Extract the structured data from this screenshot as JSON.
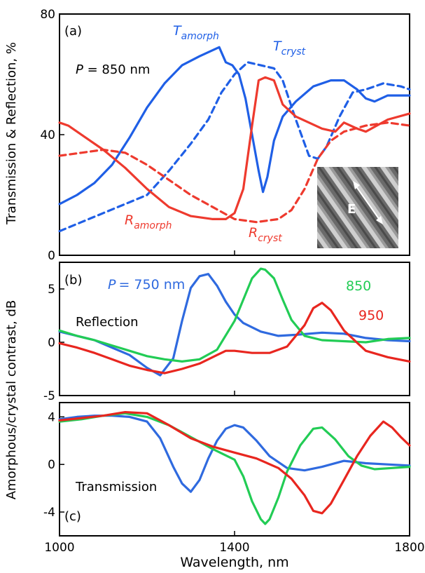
{
  "figure": {
    "xlabel": "Wavelength, nm",
    "shared_ylabel": "Amorphous/crystal contrast, dB",
    "x_ticks": [
      "1000",
      "1400",
      "1800"
    ]
  },
  "colors": {
    "blue": "#1f5fe6",
    "red": "#ee3a2e",
    "green": "#22cc55",
    "blue_c": "#2f6adf",
    "red_c": "#e8261f"
  },
  "chart_data": [
    {
      "panel": "(a)",
      "type": "line",
      "ylabel": "Transmission & Reflection, %",
      "xlim": [
        1000,
        1800
      ],
      "ylim": [
        0,
        80
      ],
      "y_ticks": [
        "0",
        "40",
        "80"
      ],
      "annotation": "P = 850 nm",
      "annotation_var": "P",
      "annotation_rest": " = 850 nm",
      "inset_label": "E",
      "series": [
        {
          "key": "t_amorph",
          "base": "T",
          "sub": "amorph",
          "color": "#1f5fe6",
          "dash": false,
          "x": [
            1000,
            1040,
            1080,
            1120,
            1160,
            1200,
            1240,
            1280,
            1320,
            1350,
            1365,
            1380,
            1395,
            1410,
            1425,
            1440,
            1455,
            1465,
            1475,
            1490,
            1510,
            1540,
            1580,
            1620,
            1650,
            1680,
            1700,
            1720,
            1750,
            1780,
            1800
          ],
          "y": [
            17,
            20,
            24,
            30,
            39,
            49,
            57,
            63,
            66,
            68,
            69,
            64,
            63,
            60,
            52,
            40,
            28,
            21,
            26,
            38,
            46,
            51,
            56,
            58,
            58,
            55,
            52,
            51,
            53,
            53,
            53
          ]
        },
        {
          "key": "t_cryst",
          "base": "T",
          "sub": "cryst",
          "color": "#1f5fe6",
          "dash": true,
          "x": [
            1000,
            1050,
            1100,
            1150,
            1200,
            1250,
            1300,
            1340,
            1370,
            1400,
            1430,
            1460,
            1490,
            1510,
            1540,
            1570,
            1590,
            1610,
            1640,
            1670,
            1700,
            1740,
            1780,
            1800
          ],
          "y": [
            8,
            11,
            14,
            17,
            20,
            28,
            37,
            45,
            54,
            60,
            64,
            63,
            62,
            58,
            45,
            33,
            32,
            36,
            46,
            54,
            55,
            57,
            56,
            55
          ]
        },
        {
          "key": "r_amorph",
          "base": "R",
          "sub": "amorph",
          "color": "#ee3a2e",
          "dash": false,
          "x": [
            1000,
            1020,
            1060,
            1100,
            1150,
            1200,
            1250,
            1300,
            1350,
            1380,
            1400,
            1420,
            1440,
            1455,
            1470,
            1490,
            1510,
            1540,
            1570,
            1600,
            1630,
            1650,
            1680,
            1700,
            1750,
            1800
          ],
          "y": [
            44,
            43,
            39,
            35,
            29,
            22,
            16,
            13,
            12,
            12,
            14,
            22,
            43,
            58,
            59,
            58,
            50,
            46,
            44,
            42,
            41,
            44,
            42,
            41,
            45,
            47
          ]
        },
        {
          "key": "r_cryst",
          "base": "R",
          "sub": "cryst",
          "color": "#ee3a2e",
          "dash": true,
          "x": [
            1000,
            1050,
            1100,
            1150,
            1200,
            1250,
            1300,
            1350,
            1400,
            1450,
            1500,
            1530,
            1560,
            1590,
            1620,
            1650,
            1700,
            1750,
            1800
          ],
          "y": [
            33,
            34,
            35,
            34,
            30,
            25,
            20,
            16,
            12,
            11,
            12,
            15,
            22,
            32,
            38,
            41,
            43,
            44,
            43
          ]
        }
      ]
    },
    {
      "panel": "(b)",
      "type": "line",
      "ylabel": "",
      "xlim": [
        1000,
        1800
      ],
      "ylim": [
        -5,
        7.5
      ],
      "y_ticks": [
        "-5",
        "0",
        "5"
      ],
      "region_label": "Reflection",
      "series": [
        {
          "key": "p750",
          "name": "= 750 nm",
          "name_var": "P",
          "color": "#2f6adf",
          "x": [
            1000,
            1040,
            1080,
            1120,
            1160,
            1200,
            1230,
            1260,
            1280,
            1300,
            1320,
            1340,
            1360,
            1380,
            1400,
            1420,
            1460,
            1500,
            1540,
            1600,
            1650,
            1700,
            1750,
            1800
          ],
          "y": [
            1,
            0.6,
            0.2,
            -0.5,
            -1.2,
            -2.4,
            -3.1,
            -1.5,
            2,
            5.1,
            6.2,
            6.4,
            5.3,
            3.8,
            2.6,
            1.8,
            1,
            0.6,
            0.7,
            0.9,
            0.8,
            0.4,
            0.2,
            0.1
          ]
        },
        {
          "key": "p850",
          "name": "850",
          "color": "#22cc55",
          "x": [
            1000,
            1040,
            1080,
            1120,
            1160,
            1200,
            1240,
            1280,
            1320,
            1360,
            1400,
            1420,
            1440,
            1460,
            1470,
            1490,
            1510,
            1530,
            1560,
            1600,
            1650,
            1700,
            1750,
            1800
          ],
          "y": [
            1.1,
            0.6,
            0.2,
            -0.3,
            -0.8,
            -1.3,
            -1.6,
            -1.8,
            -1.6,
            -0.7,
            2,
            4,
            6,
            6.9,
            6.8,
            6,
            4,
            2.1,
            0.6,
            0.2,
            0.1,
            0,
            0.3,
            0.4
          ]
        },
        {
          "key": "p950",
          "name": "950",
          "color": "#e8261f",
          "x": [
            1000,
            1040,
            1080,
            1120,
            1160,
            1200,
            1240,
            1280,
            1320,
            1360,
            1380,
            1400,
            1440,
            1480,
            1520,
            1560,
            1580,
            1600,
            1620,
            1650,
            1700,
            1750,
            1800
          ],
          "y": [
            -0.1,
            -0.5,
            -1,
            -1.6,
            -2.2,
            -2.6,
            -2.9,
            -2.5,
            -2,
            -1.2,
            -0.8,
            -0.8,
            -1,
            -1,
            -0.4,
            1.6,
            3.2,
            3.7,
            3,
            1.1,
            -0.8,
            -1.4,
            -1.8
          ]
        }
      ]
    },
    {
      "panel": "(c)",
      "type": "line",
      "ylabel": "",
      "xlim": [
        1000,
        1800
      ],
      "ylim": [
        -6,
        5.2
      ],
      "y_ticks": [
        "-4",
        "0",
        "4"
      ],
      "region_label": "Transmission",
      "series": [
        {
          "key": "t750",
          "color": "#2f6adf",
          "x": [
            1000,
            1040,
            1080,
            1120,
            1160,
            1200,
            1230,
            1260,
            1280,
            1300,
            1320,
            1340,
            1360,
            1380,
            1400,
            1420,
            1450,
            1480,
            1520,
            1560,
            1600,
            1650,
            1700,
            1750,
            1800
          ],
          "y": [
            3.8,
            4,
            4.1,
            4.1,
            4,
            3.6,
            2.2,
            -0.2,
            -1.6,
            -2.3,
            -1.3,
            0.5,
            2,
            3,
            3.3,
            3.1,
            2,
            0.7,
            -0.3,
            -0.5,
            -0.2,
            0.3,
            0.1,
            0,
            -0.1
          ]
        },
        {
          "key": "t850",
          "color": "#22cc55",
          "x": [
            1000,
            1050,
            1100,
            1150,
            1200,
            1250,
            1300,
            1350,
            1400,
            1420,
            1440,
            1460,
            1470,
            1480,
            1500,
            1520,
            1550,
            1580,
            1600,
            1630,
            1660,
            1690,
            1720,
            1760,
            1800
          ],
          "y": [
            3.6,
            3.8,
            4.1,
            4.3,
            4,
            3.3,
            2.3,
            1.3,
            0.4,
            -1,
            -3.1,
            -4.6,
            -5,
            -4.6,
            -2.8,
            -0.6,
            1.6,
            3,
            3.1,
            2.1,
            0.7,
            -0.1,
            -0.4,
            -0.3,
            -0.2
          ]
        },
        {
          "key": "t950",
          "color": "#e8261f",
          "x": [
            1000,
            1050,
            1100,
            1150,
            1200,
            1250,
            1300,
            1350,
            1400,
            1450,
            1500,
            1530,
            1560,
            1580,
            1600,
            1620,
            1650,
            1680,
            1710,
            1740,
            1760,
            1780,
            1800
          ],
          "y": [
            3.7,
            3.9,
            4.1,
            4.4,
            4.3,
            3.3,
            2.2,
            1.5,
            1,
            0.5,
            -0.3,
            -1.2,
            -2.6,
            -3.9,
            -4.1,
            -3.3,
            -1.3,
            0.7,
            2.4,
            3.6,
            3.1,
            2.3,
            1.6
          ]
        }
      ]
    }
  ]
}
